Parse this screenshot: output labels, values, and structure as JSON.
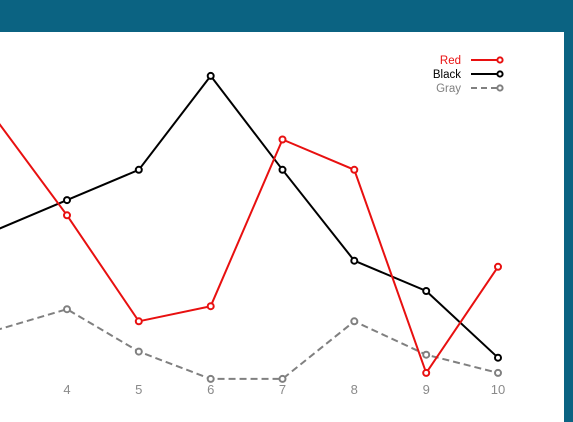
{
  "theme": {
    "frame_color": "#0b6382",
    "background": "#ffffff",
    "tick_label_color": "#8a8a8a"
  },
  "chart_data": {
    "type": "line",
    "x": [
      4,
      5,
      6,
      7,
      8,
      9,
      10
    ],
    "x_tick_labels": [
      "4",
      "5",
      "6",
      "7",
      "8",
      "9",
      "10"
    ],
    "xlim": [
      3.0,
      10.1
    ],
    "ylim": [
      0,
      10
    ],
    "grid": false,
    "legend_position": "top-right",
    "series": [
      {
        "name": "Red",
        "color": "#e81010",
        "dash": "solid",
        "values": [
          5.7,
          2.2,
          2.7,
          8.2,
          7.2,
          0.5,
          4.0
        ],
        "lead_in": [
          3.0,
          8.9
        ]
      },
      {
        "name": "Black",
        "color": "#000000",
        "dash": "solid",
        "values": [
          6.2,
          7.2,
          10.3,
          7.2,
          4.2,
          3.2,
          1.0
        ],
        "lead_in": [
          3.0,
          5.2
        ]
      },
      {
        "name": "Gray",
        "color": "#808080",
        "dash": "dashed",
        "values": [
          2.6,
          1.2,
          0.3,
          0.3,
          2.2,
          1.1,
          0.5
        ],
        "lead_in": [
          3.0,
          1.9
        ]
      }
    ]
  }
}
